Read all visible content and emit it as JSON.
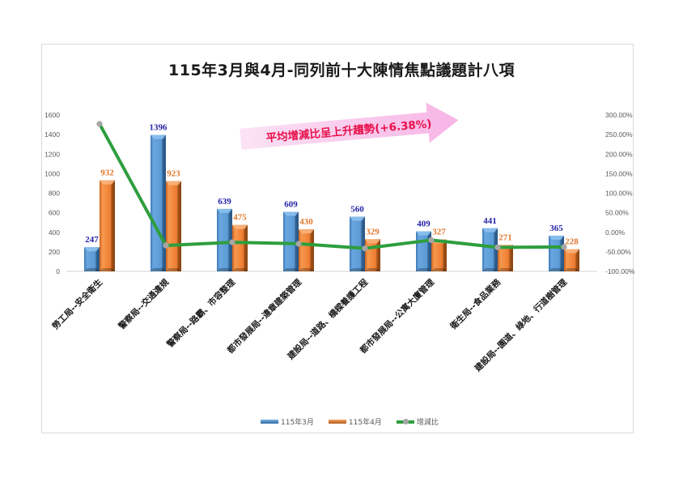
{
  "chart_data": {
    "type": "bar+line",
    "title": "115年3月與4月-同列前十大陳情焦點議題計八項",
    "categories": [
      "勞工局--安全衛生",
      "警察局--交通違規",
      "警察局--路霸、市容整理",
      "都市發展局--違章建築管理",
      "建設局--道路、橋樑養護工程",
      "都市發展局--公寓大廈管理",
      "衛生局--食品業務",
      "建設局--園道、綠地、行道樹管理"
    ],
    "series": [
      {
        "name": "115年3月",
        "type": "bar",
        "axis": "left",
        "color": "#5b9bd5",
        "values": [
          247,
          1396,
          639,
          609,
          560,
          409,
          441,
          365
        ]
      },
      {
        "name": "115年4月",
        "type": "bar",
        "axis": "left",
        "color": "#ed7d31",
        "values": [
          932,
          923,
          475,
          430,
          329,
          327,
          271,
          228
        ]
      },
      {
        "name": "增減比",
        "type": "line",
        "axis": "right",
        "color": "#2e9e3e",
        "values": [
          277.33,
          -33.88,
          -25.67,
          -29.39,
          -41.25,
          -20.05,
          -38.55,
          -37.53
        ]
      }
    ],
    "left_axis": {
      "min": 0,
      "max": 1600,
      "step": 200,
      "ticks": [
        "0",
        "200",
        "400",
        "600",
        "800",
        "1000",
        "1200",
        "1400",
        "1600"
      ]
    },
    "right_axis": {
      "min": -100,
      "max": 300,
      "step": 50,
      "ticks": [
        "-100.00%",
        "-50.00%",
        "0.00%",
        "50.00%",
        "100.00%",
        "150.00%",
        "200.00%",
        "250.00%",
        "300.00%"
      ]
    },
    "annotation": "平均增減比呈上升趨勢(+6.38%)",
    "legend_position": "bottom",
    "grid": false
  },
  "legend": {
    "march": "115年3月",
    "april": "115年4月",
    "ratio": "增減比"
  }
}
